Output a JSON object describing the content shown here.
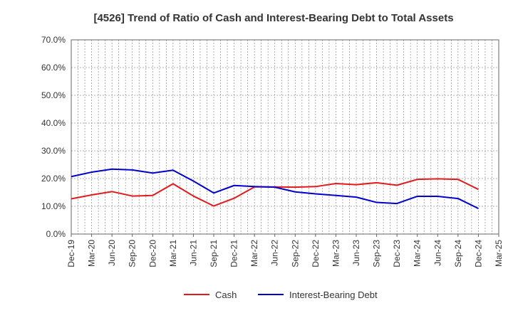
{
  "chart_data": {
    "type": "line",
    "title": "[4526]  Trend of Ratio of Cash and Interest-Bearing Debt to Total Assets",
    "xlabel": "",
    "ylabel": "",
    "categories": [
      "Dec-19",
      "Mar-20",
      "Jun-20",
      "Sep-20",
      "Dec-20",
      "Mar-21",
      "Jun-21",
      "Sep-21",
      "Dec-21",
      "Mar-22",
      "Jun-22",
      "Sep-22",
      "Dec-22",
      "Mar-23",
      "Jun-23",
      "Sep-23",
      "Dec-23",
      "Mar-24",
      "Jun-24",
      "Sep-24",
      "Dec-24",
      "Mar-25"
    ],
    "y_ticks": [
      "0.0%",
      "10.0%",
      "20.0%",
      "30.0%",
      "40.0%",
      "50.0%",
      "60.0%",
      "70.0%"
    ],
    "ylim": [
      0,
      70
    ],
    "grid": true,
    "legend_position": "bottom",
    "series": [
      {
        "name": "Cash",
        "color": "#e31a1c",
        "values": [
          12.7,
          14.1,
          15.3,
          13.7,
          13.9,
          18.1,
          13.7,
          10.1,
          12.9,
          17.0,
          17.0,
          16.9,
          17.1,
          18.2,
          17.8,
          18.5,
          17.6,
          19.7,
          19.9,
          19.7,
          16.1,
          null
        ]
      },
      {
        "name": "Interest-Bearing Debt",
        "color": "#0000cc",
        "values": [
          20.7,
          22.3,
          23.4,
          23.1,
          22.0,
          23.0,
          19.1,
          14.8,
          17.5,
          17.1,
          16.9,
          15.2,
          14.5,
          13.9,
          13.3,
          11.4,
          11.0,
          13.6,
          13.6,
          12.8,
          9.2,
          null
        ]
      }
    ]
  }
}
